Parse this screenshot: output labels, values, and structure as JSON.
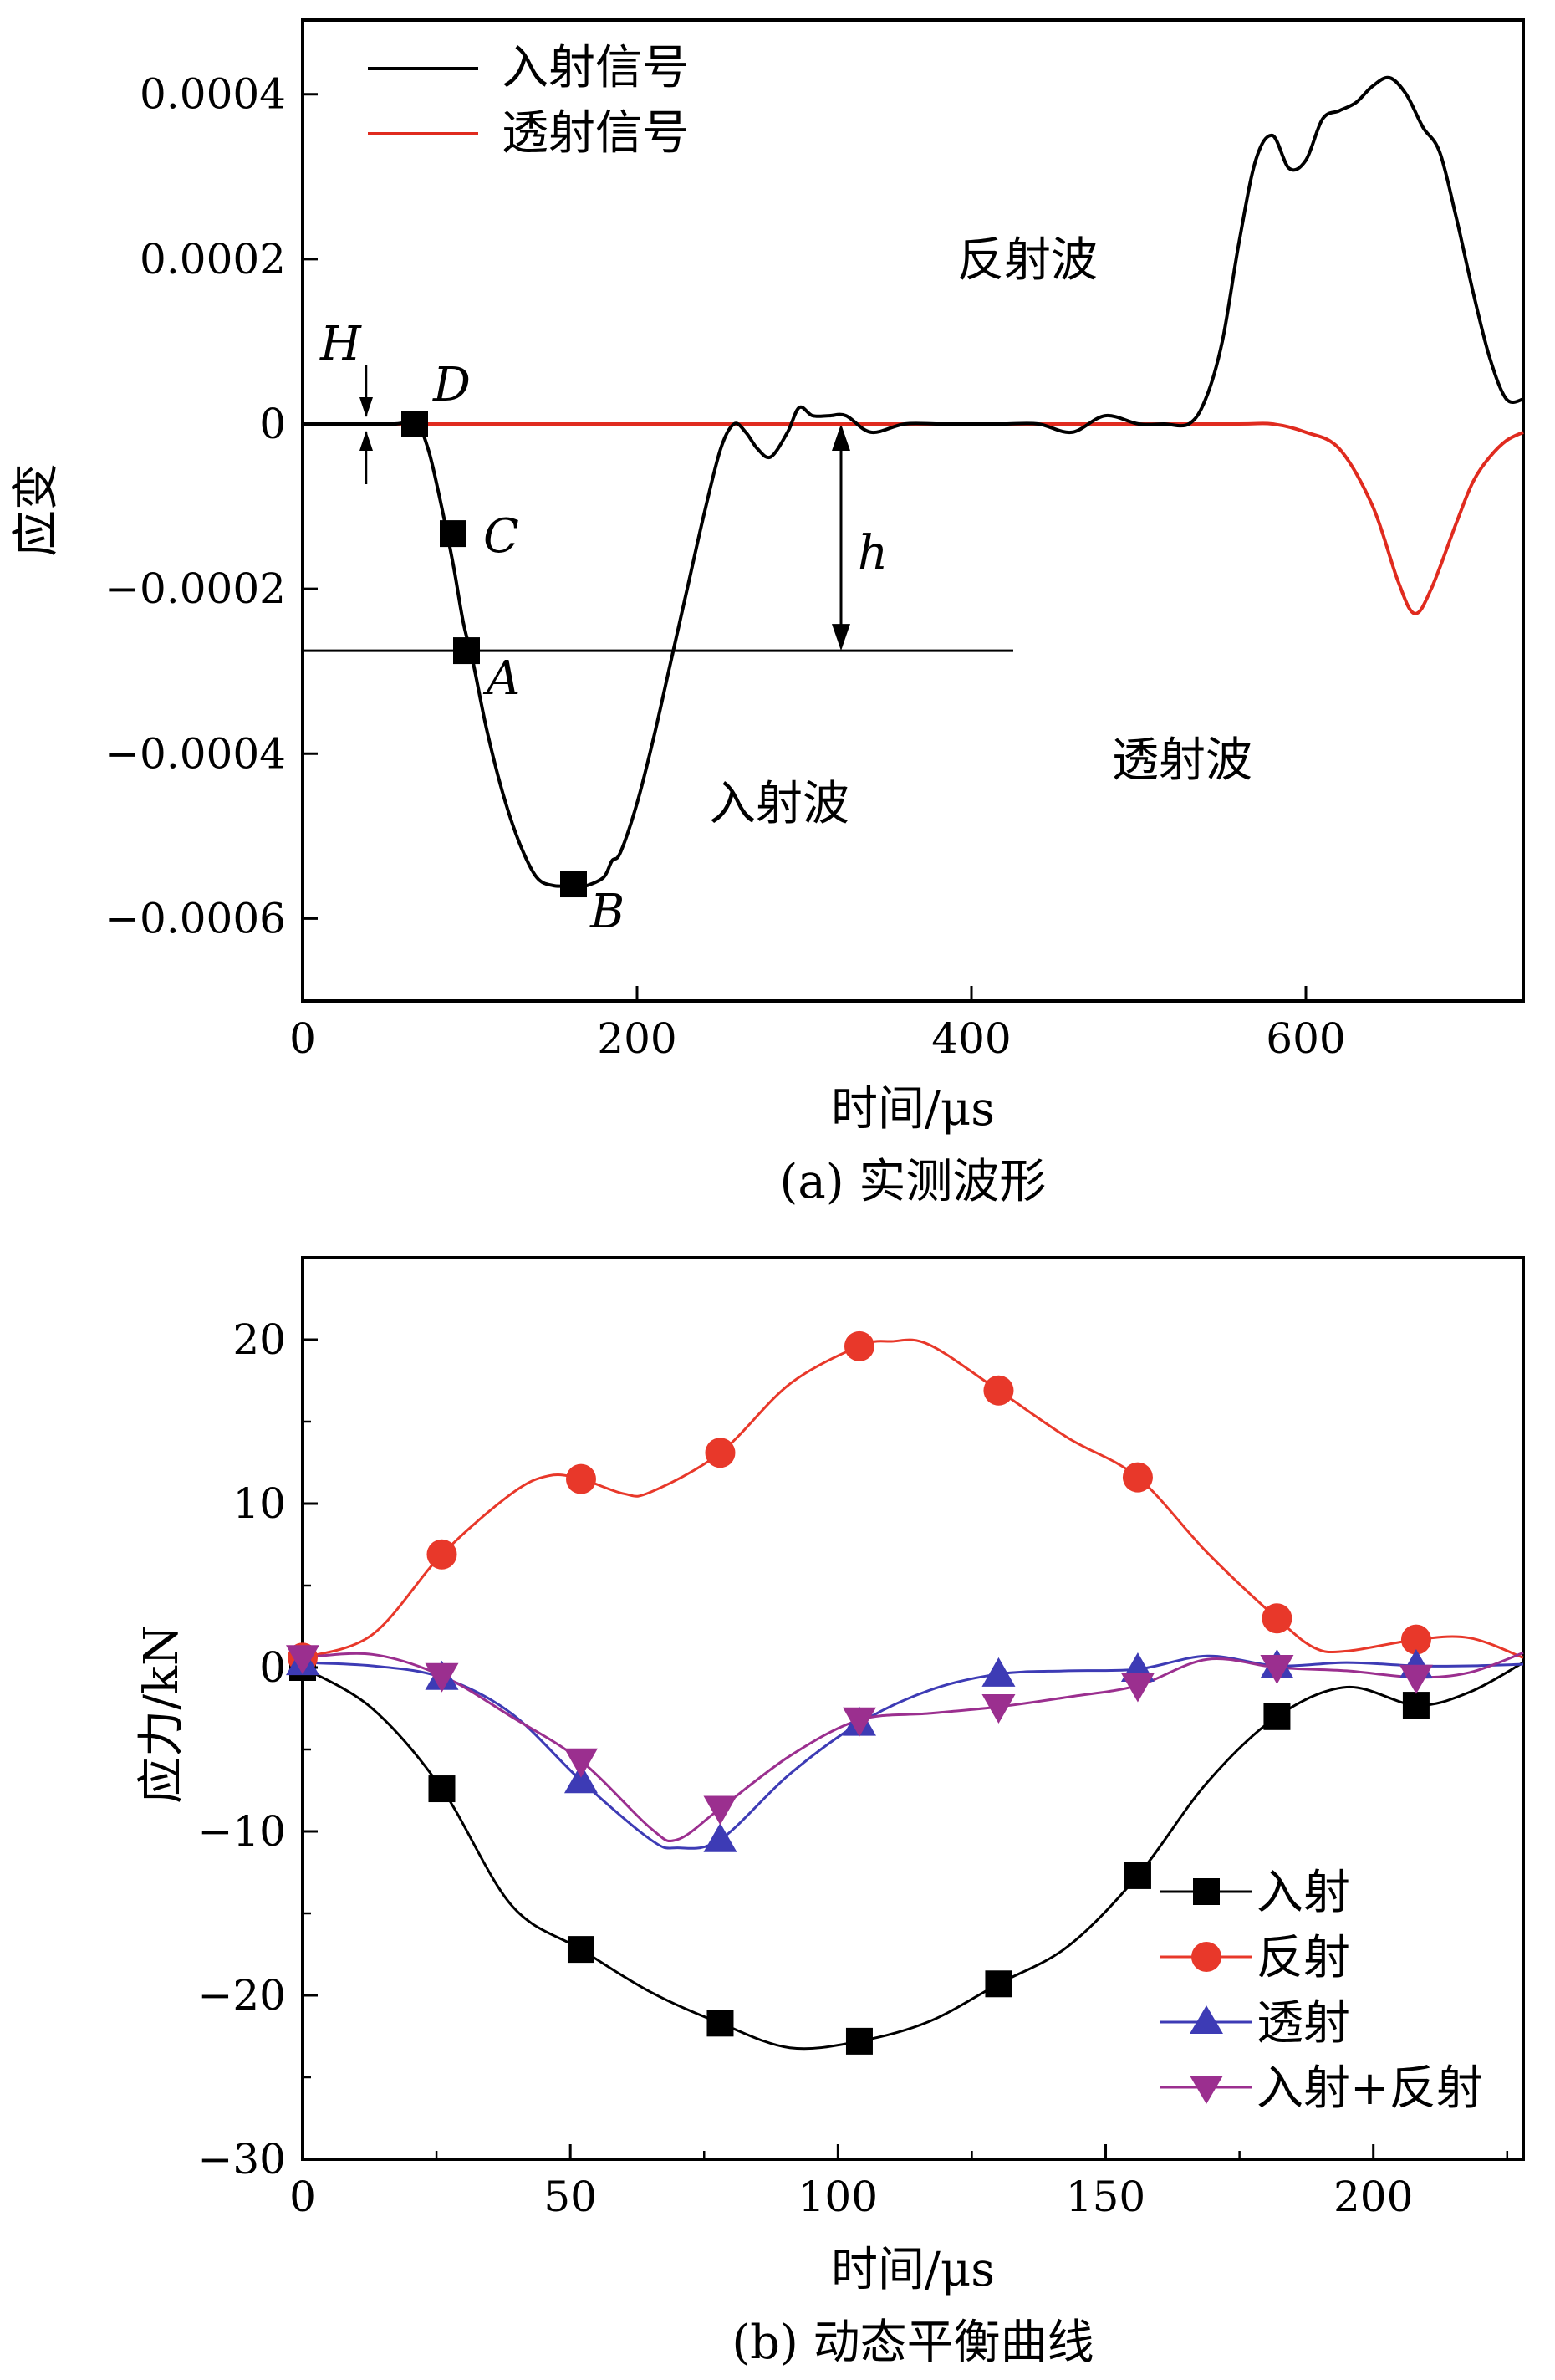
{
  "chart_data": [
    {
      "type": "line",
      "caption": "(a) 实测波形",
      "xlabel": "时间/μs",
      "ylabel": "应变",
      "xlim": [
        0,
        730
      ],
      "ylim": [
        -0.0007,
        0.00049
      ],
      "xticks": [
        0,
        200,
        400,
        600
      ],
      "xtick_labels": [
        "0",
        "200",
        "400",
        "600"
      ],
      "yticks": [
        0.0004,
        0.0002,
        0,
        -0.0002,
        -0.0004,
        -0.0006
      ],
      "ytick_labels": [
        "0.0004",
        "0.0002",
        "0",
        "−0.0002",
        "−0.0004",
        "−0.0006"
      ],
      "legend_position": "top-left",
      "series": [
        {
          "name": "入射信号",
          "color": "#000000",
          "x": [
            0,
            20,
            40,
            55,
            68,
            75,
            82,
            90,
            96,
            102,
            110,
            120,
            130,
            140,
            150,
            160,
            166,
            170,
            180,
            185,
            190,
            200,
            210,
            220,
            230,
            240,
            250,
            258,
            265,
            272,
            280,
            290,
            297,
            305,
            315,
            325,
            340,
            360,
            380,
            400,
            420,
            440,
            460,
            480,
            500,
            515,
            530,
            540,
            550,
            560,
            570,
            580,
            590,
            600,
            610,
            620,
            630,
            640,
            650,
            660,
            670,
            680,
            690,
            700,
            710,
            720,
            730
          ],
          "y": [
            0.0,
            0.0,
            0.0,
            0.0,
            0.0,
            -3e-05,
            -9e-05,
            -0.00017,
            -0.00024,
            -0.00029,
            -0.00037,
            -0.00045,
            -0.00051,
            -0.00055,
            -0.00056,
            -0.00056,
            -0.00056,
            -0.00056,
            -0.00055,
            -0.00053,
            -0.00052,
            -0.00046,
            -0.00038,
            -0.00029,
            -0.0002,
            -0.00011,
            -3e-05,
            0.0,
            -1e-05,
            -3e-05,
            -4e-05,
            -1e-05,
            2e-05,
            1e-05,
            1e-05,
            1e-05,
            -1e-05,
            0.0,
            0.0,
            0.0,
            0.0,
            0.0,
            -1e-05,
            1e-05,
            0.0,
            0.0,
            0.0,
            3e-05,
            0.0001,
            0.00022,
            0.00032,
            0.00035,
            0.00031,
            0.00032,
            0.00037,
            0.00038,
            0.00039,
            0.00041,
            0.00042,
            0.0004,
            0.00036,
            0.00033,
            0.00025,
            0.00016,
            8e-05,
            3e-05,
            3e-05
          ]
        },
        {
          "name": "透射信号",
          "color": "#e02b1f",
          "x": [
            0,
            100,
            200,
            300,
            400,
            500,
            560,
            580,
            600,
            620,
            640,
            655,
            665,
            675,
            690,
            700,
            710,
            720,
            730
          ],
          "y": [
            0.0,
            0.0,
            0.0,
            0.0,
            0.0,
            0.0,
            0.0,
            0.0,
            -1e-05,
            -3e-05,
            -0.0001,
            -0.00019,
            -0.00023,
            -0.0002,
            -0.00012,
            -7e-05,
            -4e-05,
            -2e-05,
            -1e-05
          ]
        }
      ],
      "markers": [
        {
          "label": "D",
          "x": 67,
          "y": 0.0
        },
        {
          "label": "C",
          "x": 90,
          "y": -0.000133
        },
        {
          "label": "A",
          "x": 98,
          "y": -0.000275
        },
        {
          "label": "B",
          "x": 162,
          "y": -0.000558
        }
      ],
      "annotations": [
        {
          "text": "H",
          "style": "italic"
        },
        {
          "text": "h",
          "style": "italic"
        },
        {
          "text": "反射波"
        },
        {
          "text": "入射波"
        },
        {
          "text": "透射波"
        }
      ],
      "reference_line": {
        "y": -0.000275,
        "x_from": 0,
        "x_to": 425
      },
      "h_arrow": {
        "x": 322,
        "y_from": 0.0,
        "y_to": -0.000275
      },
      "H_marker_x": 38
    },
    {
      "type": "line",
      "caption": "(b) 动态平衡曲线",
      "xlabel": "时间/μs",
      "ylabel": "应力/kN",
      "xlim": [
        0,
        228
      ],
      "ylim": [
        -30,
        25
      ],
      "xticks": [
        0,
        50,
        100,
        150,
        200
      ],
      "xtick_labels": [
        "0",
        "50",
        "100",
        "150",
        "200"
      ],
      "yticks": [
        20,
        10,
        0,
        -10,
        -20,
        -30
      ],
      "ytick_labels": [
        "20",
        "10",
        "0",
        "−10",
        "−20",
        "−30"
      ],
      "legend_position": "bottom-right",
      "series": [
        {
          "name": "入射",
          "color": "#000000",
          "marker": "square",
          "x": [
            0,
            13,
            26,
            39,
            52,
            65,
            78,
            91,
            104,
            117,
            130,
            143,
            156,
            169,
            182,
            195,
            208,
            218,
            228
          ],
          "y": [
            0.0,
            -2.5,
            -7.4,
            -14.5,
            -17.2,
            -19.8,
            -21.7,
            -23.2,
            -22.8,
            -21.6,
            -19.3,
            -17.0,
            -12.7,
            -7.0,
            -3.0,
            -1.2,
            -2.3,
            -1.5,
            0.3
          ],
          "marker_x": [
            0,
            26,
            52,
            78,
            104,
            130,
            156,
            182,
            208
          ],
          "marker_y": [
            0.0,
            -7.4,
            -17.2,
            -21.7,
            -22.8,
            -19.3,
            -12.7,
            -3.0,
            -2.3
          ]
        },
        {
          "name": "反射",
          "color": "#e8382a",
          "marker": "circle",
          "x": [
            0,
            13,
            26,
            39,
            46,
            52,
            60,
            65,
            78,
            91,
            104,
            110,
            117,
            130,
            143,
            156,
            169,
            182,
            189,
            195,
            208,
            218,
            228
          ],
          "y": [
            0.6,
            2.0,
            6.9,
            10.6,
            11.7,
            11.5,
            10.6,
            10.7,
            13.1,
            17.3,
            19.6,
            19.9,
            19.7,
            16.9,
            14.0,
            11.6,
            7.0,
            3.0,
            1.2,
            1.0,
            1.7,
            1.8,
            0.6
          ],
          "marker_x": [
            0,
            26,
            52,
            78,
            104,
            130,
            156,
            182,
            208
          ],
          "marker_y": [
            0.6,
            6.9,
            11.5,
            13.1,
            19.6,
            16.9,
            11.6,
            3.0,
            1.7
          ]
        },
        {
          "name": "透射",
          "color": "#3d3bb5",
          "marker": "triangle-up",
          "x": [
            0,
            13,
            26,
            39,
            52,
            65,
            70,
            78,
            91,
            104,
            117,
            130,
            143,
            156,
            169,
            182,
            195,
            208,
            218,
            228
          ],
          "y": [
            0.3,
            0.1,
            -0.6,
            -2.8,
            -6.9,
            -10.5,
            -11.0,
            -10.5,
            -6.5,
            -3.4,
            -1.4,
            -0.4,
            -0.2,
            -0.1,
            0.7,
            0.1,
            0.3,
            0.1,
            0.1,
            0.2
          ],
          "marker_x": [
            0,
            26,
            52,
            78,
            104,
            130,
            156,
            182,
            208
          ],
          "marker_y": [
            0.3,
            -0.6,
            -6.9,
            -10.5,
            -3.4,
            -0.4,
            -0.1,
            0.1,
            0.1
          ]
        },
        {
          "name": "入射+反射",
          "color": "#9b2f8f",
          "marker": "triangle-down",
          "x": [
            0,
            13,
            26,
            39,
            52,
            65,
            70,
            78,
            91,
            104,
            117,
            130,
            143,
            156,
            169,
            182,
            195,
            208,
            218,
            228
          ],
          "y": [
            0.6,
            0.8,
            -0.5,
            -3.0,
            -5.7,
            -9.8,
            -10.5,
            -8.6,
            -5.4,
            -3.2,
            -2.8,
            -2.4,
            -1.8,
            -1.1,
            0.5,
            0.0,
            -0.2,
            -0.6,
            -0.3,
            0.9
          ],
          "marker_x": [
            0,
            26,
            52,
            78,
            104,
            130,
            156,
            182,
            208
          ],
          "marker_y": [
            0.6,
            -0.5,
            -5.7,
            -8.6,
            -3.2,
            -2.4,
            -1.1,
            0.0,
            -0.6
          ]
        }
      ]
    }
  ]
}
